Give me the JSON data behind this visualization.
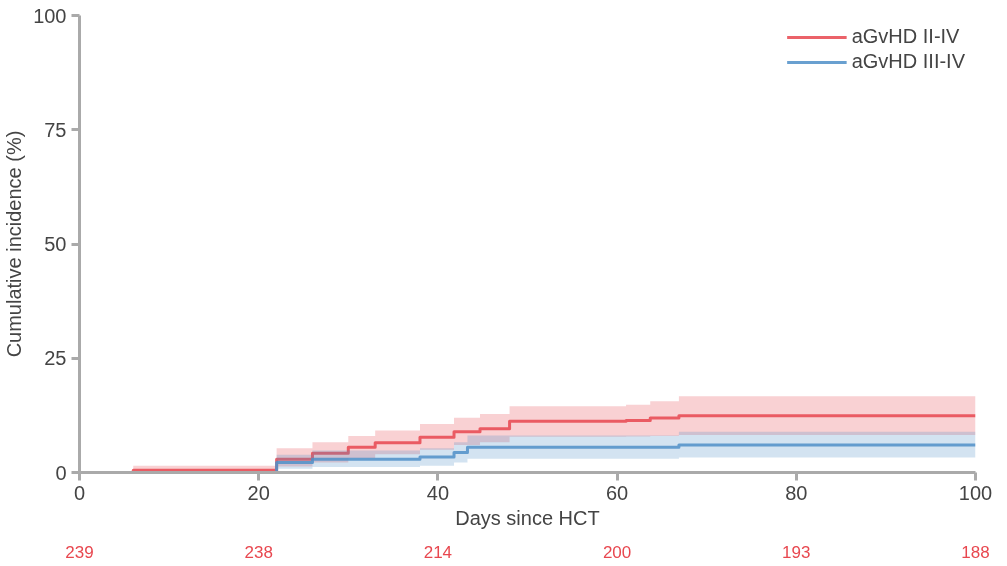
{
  "chart_data": {
    "type": "step",
    "xlabel": "Days since HCT",
    "ylabel": "Cumulative incidence (%)",
    "xlim": [
      0,
      100
    ],
    "xticks": [
      0,
      20,
      40,
      60,
      80,
      100
    ],
    "ylim": [
      0,
      100
    ],
    "yticks": [
      0,
      25,
      50,
      75,
      100
    ],
    "grid": false,
    "legend": "top right",
    "series": [
      {
        "name": "aGvHD II-IV",
        "color": "#e8474f",
        "x": [
          0,
          6,
          22,
          26,
          30,
          33,
          38,
          41.8,
          44.7,
          48,
          61,
          63.7,
          66.9,
          100
        ],
        "values": [
          0,
          0.5,
          2.9,
          4.2,
          5.5,
          6.5,
          7.7,
          8.9,
          9.6,
          11.2,
          11.4,
          11.9,
          12.4,
          12.4
        ],
        "lower": [
          0,
          0.1,
          1.3,
          2.2,
          3.2,
          4.0,
          5.0,
          6.0,
          6.6,
          7.8,
          7.9,
          8.0,
          8.2,
          8.2
        ],
        "upper": [
          0,
          1.5,
          5.3,
          6.6,
          8.0,
          9.2,
          10.6,
          12.0,
          12.8,
          14.5,
          14.8,
          15.6,
          16.7,
          16.7
        ]
      },
      {
        "name": "aGvHD III-IV",
        "color": "#4f8fc8",
        "x": [
          0,
          22,
          26,
          38,
          41.8,
          43.3,
          66.9,
          100
        ],
        "values": [
          0,
          2.2,
          2.9,
          3.4,
          4.4,
          5.5,
          6.0,
          6.0
        ],
        "lower": [
          0,
          0.8,
          1.2,
          1.5,
          2.2,
          3.0,
          3.3,
          3.3
        ],
        "upper": [
          0,
          3.9,
          4.8,
          5.3,
          6.6,
          8.1,
          8.9,
          8.9
        ]
      }
    ],
    "annotations": [
      "239",
      "238",
      "214",
      "200",
      "193",
      "188"
    ]
  }
}
